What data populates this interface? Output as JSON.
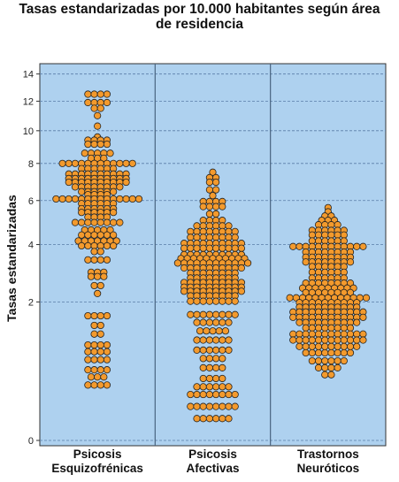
{
  "chart_data": {
    "type": "scatter",
    "subtype": "dot-plot",
    "title_lines": [
      "Tasas estandarizadas por 10.000 habitantes según área",
      "de residencia"
    ],
    "ylabel": "Tasas estandarizadas",
    "xlabel": "",
    "y_scale": "sqrt",
    "ylim": [
      0,
      14.8
    ],
    "yticks": [
      "0",
      "2",
      "4",
      "6",
      "8",
      "10",
      "12",
      "14"
    ],
    "grid": "horizontal-dashed",
    "background_color": "#aed1ef",
    "marker_color": "#f39a2d",
    "marker_edge": "#222222",
    "categories": [
      {
        "label_lines": [
          "Psicosis",
          "Esquizofrénicas"
        ],
        "rows": [
          {
            "y": 12.5,
            "n": 4
          },
          {
            "y": 11.9,
            "n": 4
          },
          {
            "y": 11.5,
            "n": 2
          },
          {
            "y": 11.0,
            "n": 1
          },
          {
            "y": 10.3,
            "n": 1
          },
          {
            "y": 9.6,
            "n": 1
          },
          {
            "y": 9.4,
            "n": 4
          },
          {
            "y": 9.15,
            "n": 4
          },
          {
            "y": 8.6,
            "n": 5
          },
          {
            "y": 8.3,
            "n": 3
          },
          {
            "y": 8.0,
            "n": 12
          },
          {
            "y": 7.7,
            "n": 6
          },
          {
            "y": 7.4,
            "n": 10
          },
          {
            "y": 7.15,
            "n": 10
          },
          {
            "y": 6.95,
            "n": 10
          },
          {
            "y": 6.7,
            "n": 8
          },
          {
            "y": 6.45,
            "n": 6
          },
          {
            "y": 6.3,
            "n": 4
          },
          {
            "y": 6.08,
            "n": 14
          },
          {
            "y": 5.85,
            "n": 6
          },
          {
            "y": 5.6,
            "n": 6
          },
          {
            "y": 5.42,
            "n": 6
          },
          {
            "y": 5.2,
            "n": 4
          },
          {
            "y": 4.95,
            "n": 8
          },
          {
            "y": 4.62,
            "n": 5
          },
          {
            "y": 4.4,
            "n": 6
          },
          {
            "y": 4.15,
            "n": 7
          },
          {
            "y": 3.95,
            "n": 6
          },
          {
            "y": 3.72,
            "n": 2
          },
          {
            "y": 3.4,
            "n": 4
          },
          {
            "y": 2.95,
            "n": 3
          },
          {
            "y": 2.8,
            "n": 3
          },
          {
            "y": 2.5,
            "n": 2
          },
          {
            "y": 2.25,
            "n": 1
          },
          {
            "y": 1.62,
            "n": 4
          },
          {
            "y": 1.38,
            "n": 2
          },
          {
            "y": 1.18,
            "n": 2
          },
          {
            "y": 0.95,
            "n": 4
          },
          {
            "y": 0.82,
            "n": 4
          },
          {
            "y": 0.68,
            "n": 4
          },
          {
            "y": 0.52,
            "n": 4
          },
          {
            "y": 0.42,
            "n": 3
          },
          {
            "y": 0.32,
            "n": 4
          }
        ]
      },
      {
        "label_lines": [
          "Psicosis",
          "Afectivas"
        ],
        "rows": [
          {
            "y": 7.5,
            "n": 1
          },
          {
            "y": 7.2,
            "n": 2
          },
          {
            "y": 6.95,
            "n": 2
          },
          {
            "y": 6.55,
            "n": 2
          },
          {
            "y": 6.25,
            "n": 1
          },
          {
            "y": 5.95,
            "n": 4
          },
          {
            "y": 5.7,
            "n": 4
          },
          {
            "y": 5.35,
            "n": 2
          },
          {
            "y": 5.05,
            "n": 4
          },
          {
            "y": 4.8,
            "n": 6
          },
          {
            "y": 4.55,
            "n": 8
          },
          {
            "y": 4.3,
            "n": 8
          },
          {
            "y": 4.05,
            "n": 10
          },
          {
            "y": 3.85,
            "n": 10
          },
          {
            "y": 3.6,
            "n": 10
          },
          {
            "y": 3.45,
            "n": 11
          },
          {
            "y": 3.28,
            "n": 12
          },
          {
            "y": 3.1,
            "n": 10
          },
          {
            "y": 2.92,
            "n": 8
          },
          {
            "y": 2.75,
            "n": 8
          },
          {
            "y": 2.6,
            "n": 10
          },
          {
            "y": 2.45,
            "n": 10
          },
          {
            "y": 2.32,
            "n": 10
          },
          {
            "y": 2.18,
            "n": 8
          },
          {
            "y": 2.02,
            "n": 8
          },
          {
            "y": 1.65,
            "n": 8
          },
          {
            "y": 1.45,
            "n": 6
          },
          {
            "y": 1.25,
            "n": 5
          },
          {
            "y": 1.05,
            "n": 6
          },
          {
            "y": 0.85,
            "n": 6
          },
          {
            "y": 0.7,
            "n": 4
          },
          {
            "y": 0.55,
            "n": 4
          },
          {
            "y": 0.4,
            "n": 4
          },
          {
            "y": 0.3,
            "n": 6
          },
          {
            "y": 0.22,
            "n": 8
          },
          {
            "y": 0.12,
            "n": 8
          },
          {
            "y": 0.05,
            "n": 6
          }
        ]
      },
      {
        "label_lines": [
          "Trastornos",
          "Neuróticos"
        ],
        "rows": [
          {
            "y": 5.65,
            "n": 1
          },
          {
            "y": 5.45,
            "n": 1
          },
          {
            "y": 5.25,
            "n": 2
          },
          {
            "y": 5.05,
            "n": 3
          },
          {
            "y": 4.85,
            "n": 4
          },
          {
            "y": 4.6,
            "n": 6
          },
          {
            "y": 4.4,
            "n": 6
          },
          {
            "y": 4.15,
            "n": 6
          },
          {
            "y": 3.92,
            "n": 12
          },
          {
            "y": 3.7,
            "n": 8
          },
          {
            "y": 3.5,
            "n": 8
          },
          {
            "y": 3.32,
            "n": 8
          },
          {
            "y": 3.15,
            "n": 6
          },
          {
            "y": 2.95,
            "n": 6
          },
          {
            "y": 2.75,
            "n": 6
          },
          {
            "y": 2.58,
            "n": 8
          },
          {
            "y": 2.42,
            "n": 9
          },
          {
            "y": 2.28,
            "n": 8
          },
          {
            "y": 2.12,
            "n": 13
          },
          {
            "y": 1.98,
            "n": 10
          },
          {
            "y": 1.85,
            "n": 10
          },
          {
            "y": 1.72,
            "n": 12
          },
          {
            "y": 1.58,
            "n": 12
          },
          {
            "y": 1.45,
            "n": 10
          },
          {
            "y": 1.32,
            "n": 8
          },
          {
            "y": 1.18,
            "n": 12
          },
          {
            "y": 1.05,
            "n": 12
          },
          {
            "y": 0.92,
            "n": 10
          },
          {
            "y": 0.8,
            "n": 8
          },
          {
            "y": 0.66,
            "n": 6
          },
          {
            "y": 0.55,
            "n": 4
          },
          {
            "y": 0.45,
            "n": 2
          }
        ]
      }
    ]
  }
}
